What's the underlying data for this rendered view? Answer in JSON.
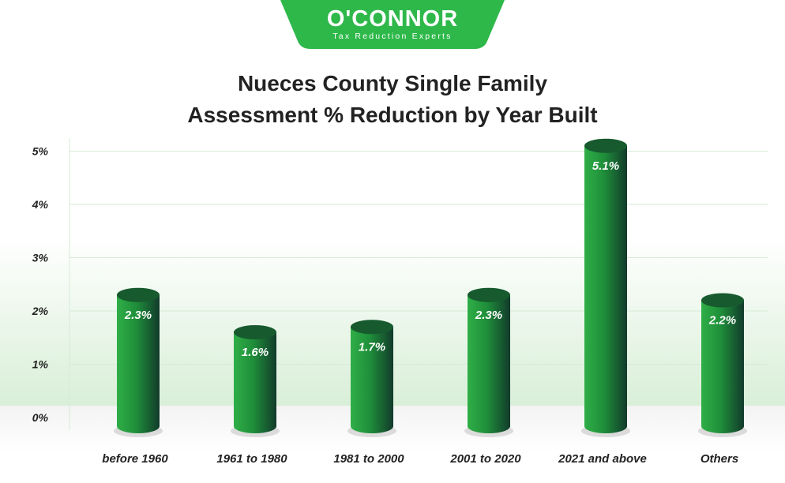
{
  "brand": {
    "name": "O'CONNOR",
    "tagline": "Tax Reduction Experts",
    "color": "#2eb84a"
  },
  "chart_data": {
    "type": "bar",
    "title_lines": [
      "Nueces County Single Family",
      "Assessment % Reduction by Year Built"
    ],
    "categories": [
      "before 1960",
      "1961 to 1980",
      "1981 to 2000",
      "2001 to 2020",
      "2021 and above",
      "Others"
    ],
    "values": [
      2.3,
      1.6,
      1.7,
      2.3,
      5.1,
      2.2
    ],
    "value_labels": [
      "2.3%",
      "1.6%",
      "1.7%",
      "2.3%",
      "5.1%",
      "2.2%"
    ],
    "y_ticks": [
      "0%",
      "1%",
      "2%",
      "3%",
      "4%",
      "5%"
    ],
    "ylim": [
      0,
      5
    ],
    "grid": true,
    "bar_color": "#1f8f3a"
  }
}
